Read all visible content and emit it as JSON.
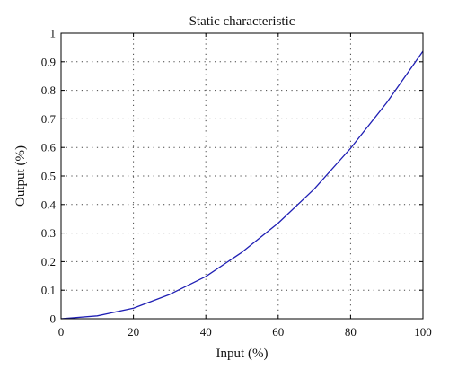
{
  "chart_data": {
    "type": "line",
    "title": "Static characteristic",
    "xlabel": "Input (%)",
    "ylabel": "Output (%)",
    "xlim": [
      0,
      100
    ],
    "ylim": [
      0,
      1
    ],
    "grid": true,
    "x_ticks": [
      0,
      20,
      40,
      60,
      80,
      100
    ],
    "x_tick_labels": [
      "0",
      "20",
      "40",
      "60",
      "80",
      "100"
    ],
    "y_ticks": [
      0,
      0.1,
      0.2,
      0.3,
      0.4,
      0.5,
      0.6,
      0.7,
      0.8,
      0.9,
      1
    ],
    "y_tick_labels": [
      "0",
      "0.1",
      "0.2",
      "0.3",
      "0.4",
      "0.5",
      "0.6",
      "0.7",
      "0.8",
      "0.9",
      "1"
    ],
    "series": [
      {
        "x": [
          0,
          10,
          20,
          30,
          40,
          50,
          60,
          70,
          80,
          90,
          100
        ],
        "y": [
          0,
          0.01,
          0.037,
          0.085,
          0.148,
          0.233,
          0.335,
          0.455,
          0.597,
          0.757,
          0.937
        ],
        "color": "#1f1fb4"
      }
    ]
  }
}
